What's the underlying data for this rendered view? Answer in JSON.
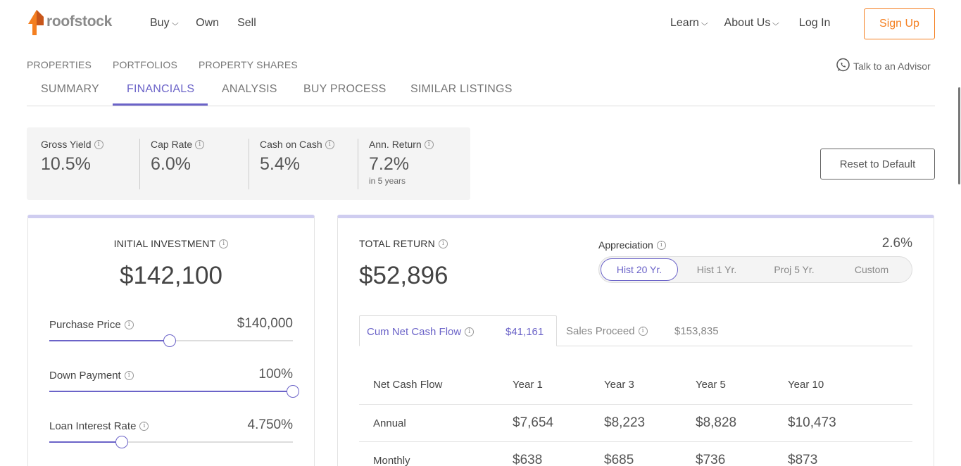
{
  "brand": {
    "name": "roofstock",
    "accent": "#f47f20",
    "primary": "#6b63c8"
  },
  "nav_left": [
    "Buy",
    "Own",
    "Sell"
  ],
  "nav_right": {
    "learn": "Learn",
    "about": "About Us",
    "login": "Log In",
    "signup": "Sign Up"
  },
  "subnav": [
    "PROPERTIES",
    "PORTFOLIOS",
    "PROPERTY SHARES"
  ],
  "advisor": "Talk to an Advisor",
  "tabs": [
    "SUMMARY",
    "FINANCIALS",
    "ANALYSIS",
    "BUY PROCESS",
    "SIMILAR LISTINGS"
  ],
  "active_tab": "FINANCIALS",
  "metrics": [
    {
      "label": "Gross Yield",
      "value": "10.5%"
    },
    {
      "label": "Cap Rate",
      "value": "6.0%"
    },
    {
      "label": "Cash on Cash",
      "value": "5.4%"
    },
    {
      "label": "Ann. Return",
      "value": "7.2%",
      "sub": "in 5 years"
    }
  ],
  "reset_label": "Reset to Default",
  "investment": {
    "title": "INITIAL INVESTMENT",
    "value": "$142,100",
    "sliders": [
      {
        "label": "Purchase Price",
        "value": "$140,000",
        "fraction": 0.495
      },
      {
        "label": "Down Payment",
        "value": "100%",
        "fraction": 1.0
      },
      {
        "label": "Loan Interest Rate",
        "value": "4.750%",
        "fraction": 0.297
      }
    ]
  },
  "total_return": {
    "title": "TOTAL RETURN",
    "value": "$52,896",
    "appreciation_label": "Appreciation",
    "appreciation_value": "2.6%",
    "options": [
      "Hist 20 Yr.",
      "Hist 1 Yr.",
      "Proj 5 Yr.",
      "Custom"
    ],
    "selected_option": "Hist 20 Yr."
  },
  "cash_tabs": [
    {
      "label": "Cum Net Cash Flow",
      "value": "$41,161"
    },
    {
      "label": "Sales Proceed",
      "value": "$153,835"
    }
  ],
  "table": {
    "headers": [
      "Net Cash Flow",
      "Year 1",
      "Year 3",
      "Year 5",
      "Year 10"
    ],
    "rows": [
      {
        "label": "Annual",
        "values": [
          "$7,654",
          "$8,223",
          "$8,828",
          "$10,473"
        ]
      },
      {
        "label": "Monthly",
        "values": [
          "$638",
          "$685",
          "$736",
          "$873"
        ]
      }
    ]
  }
}
